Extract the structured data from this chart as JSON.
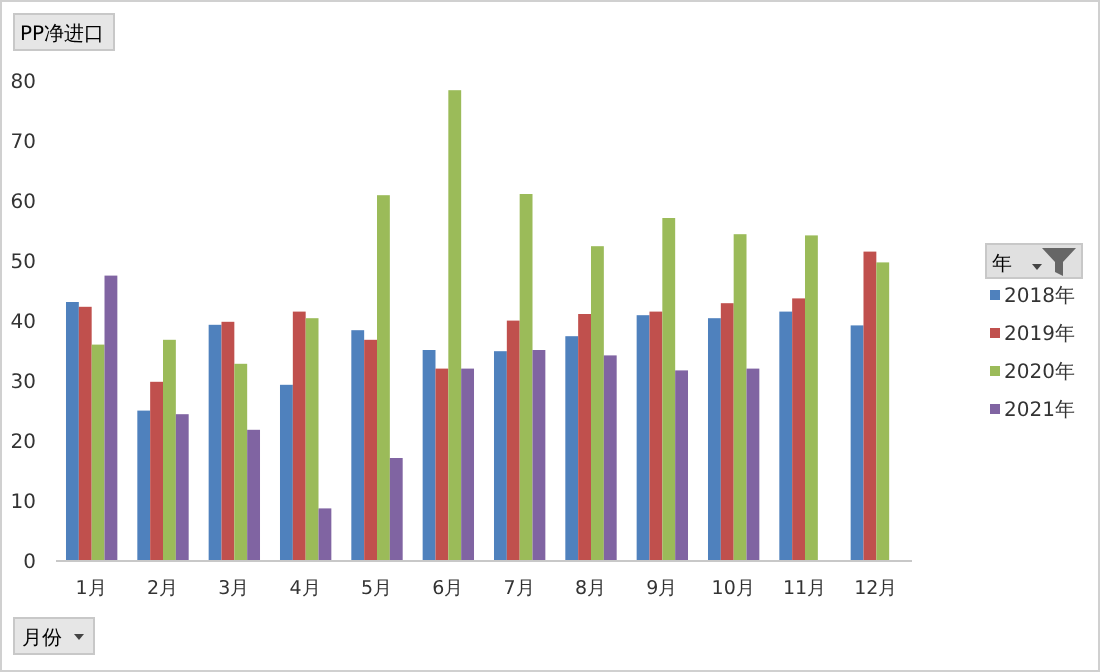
{
  "chart_data": {
    "type": "bar",
    "title": "PP净进口",
    "xlabel": "月份",
    "legend_title": "年",
    "legend": "right",
    "categories": [
      "1月",
      "2月",
      "3月",
      "4月",
      "5月",
      "6月",
      "7月",
      "8月",
      "9月",
      "10月",
      "11月",
      "12月"
    ],
    "ylim": [
      0,
      80
    ],
    "yticks": [
      0,
      10,
      20,
      30,
      40,
      50,
      60,
      70,
      80
    ],
    "grid": false,
    "series": [
      {
        "name": "2018年",
        "color": "#4f81bd",
        "values": [
          43,
          24.9,
          39.2,
          29.2,
          38.3,
          35,
          34.8,
          37.3,
          40.8,
          40.3,
          41.4,
          39.1
        ]
      },
      {
        "name": "2019年",
        "color": "#c0504d",
        "values": [
          42.2,
          29.7,
          39.7,
          41.4,
          36.7,
          31.9,
          39.9,
          41,
          41.4,
          42.8,
          43.6,
          51.4
        ]
      },
      {
        "name": "2020年",
        "color": "#9bbb59",
        "values": [
          35.9,
          36.7,
          32.7,
          40.3,
          60.8,
          78.3,
          61,
          52.3,
          57,
          54.3,
          54.1,
          49.6
        ]
      },
      {
        "name": "2021年",
        "color": "#8064a2",
        "values": [
          47.4,
          24.3,
          21.7,
          8.6,
          17,
          31.9,
          35,
          34.1,
          31.6,
          31.9,
          null,
          null
        ]
      }
    ]
  }
}
